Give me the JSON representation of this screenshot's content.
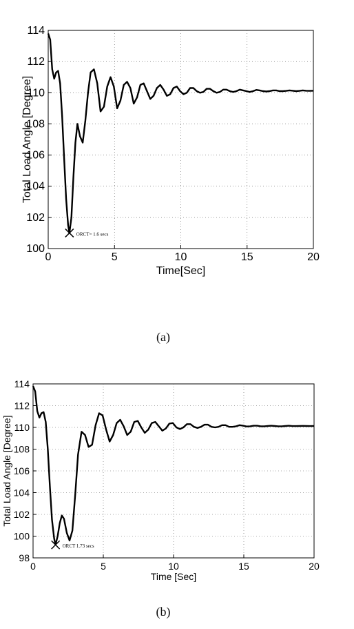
{
  "chart_data": [
    {
      "type": "line",
      "xlabel": "Time[Sec]",
      "ylabel": "Total Load Angle [Degree]",
      "xlim": [
        0,
        20
      ],
      "ylim": [
        100,
        114
      ],
      "xticks": [
        0,
        5,
        10,
        15,
        20
      ],
      "yticks": [
        100,
        102,
        104,
        106,
        108,
        110,
        112,
        114
      ],
      "grid": "dotted",
      "annotation": {
        "text": "ORCT= 1.6 secs",
        "x": 1.6,
        "y": 101.0
      },
      "series": [
        {
          "x": [
            0,
            0.15,
            0.3,
            0.45,
            0.6,
            0.75,
            0.9,
            1.05,
            1.2,
            1.35,
            1.5,
            1.6,
            1.75,
            1.9,
            2.05,
            2.2,
            2.4,
            2.6,
            2.8,
            3.0,
            3.2,
            3.45,
            3.7,
            3.95,
            4.2,
            4.45,
            4.7,
            4.95,
            5.2,
            5.45,
            5.7,
            5.95,
            6.2,
            6.45,
            6.7,
            6.95,
            7.2,
            7.45,
            7.7,
            7.95,
            8.2,
            8.45,
            8.7,
            8.95,
            9.2,
            9.45,
            9.7,
            9.95,
            10.2,
            10.45,
            10.7,
            10.95,
            11.2,
            11.45,
            11.7,
            11.95,
            12.2,
            12.45,
            12.7,
            12.95,
            13.2,
            13.45,
            13.7,
            13.95,
            14.2,
            14.45,
            14.7,
            14.95,
            15.2,
            15.45,
            15.7,
            15.95,
            16.2,
            16.45,
            16.7,
            16.95,
            17.2,
            17.45,
            17.7,
            17.95,
            18.2,
            18.45,
            18.7,
            18.95,
            19.2,
            19.45,
            19.7,
            20
          ],
          "y": [
            113.8,
            113.4,
            111.5,
            110.9,
            111.3,
            111.4,
            110.6,
            108.5,
            105.8,
            103.2,
            101.5,
            101.0,
            102.0,
            104.6,
            106.8,
            108.0,
            107.2,
            106.8,
            108.2,
            110.0,
            111.3,
            111.5,
            110.6,
            108.8,
            109.1,
            110.4,
            111.0,
            110.4,
            109.0,
            109.5,
            110.5,
            110.7,
            110.3,
            109.3,
            109.7,
            110.5,
            110.6,
            110.1,
            109.6,
            109.8,
            110.3,
            110.5,
            110.2,
            109.8,
            109.9,
            110.3,
            110.4,
            110.1,
            109.9,
            110.0,
            110.3,
            110.3,
            110.1,
            110.0,
            110.05,
            110.25,
            110.25,
            110.1,
            110.0,
            110.05,
            110.2,
            110.2,
            110.1,
            110.05,
            110.1,
            110.2,
            110.15,
            110.1,
            110.05,
            110.1,
            110.18,
            110.15,
            110.1,
            110.08,
            110.1,
            110.15,
            110.15,
            110.1,
            110.1,
            110.12,
            110.15,
            110.13,
            110.1,
            110.12,
            110.15,
            110.13,
            110.12,
            110.13
          ]
        }
      ]
    },
    {
      "type": "line",
      "xlabel": "Time [Sec]",
      "ylabel": "Total Load Angle [Degree]",
      "xlim": [
        0,
        20
      ],
      "ylim": [
        98,
        114
      ],
      "xticks": [
        0,
        5,
        10,
        15,
        20
      ],
      "yticks": [
        98,
        100,
        102,
        104,
        106,
        108,
        110,
        112,
        114
      ],
      "grid": "dotted",
      "annotation": {
        "text": "ORCT 1.73 secs",
        "x": 1.6,
        "y": 99.2
      },
      "series": [
        {
          "x": [
            0,
            0.15,
            0.3,
            0.45,
            0.6,
            0.75,
            0.9,
            1.05,
            1.2,
            1.35,
            1.5,
            1.6,
            1.75,
            1.9,
            2.05,
            2.2,
            2.4,
            2.6,
            2.8,
            3.0,
            3.2,
            3.45,
            3.7,
            3.95,
            4.2,
            4.45,
            4.7,
            4.95,
            5.2,
            5.45,
            5.7,
            5.95,
            6.2,
            6.45,
            6.7,
            6.95,
            7.2,
            7.45,
            7.7,
            7.95,
            8.2,
            8.45,
            8.7,
            8.95,
            9.2,
            9.45,
            9.7,
            9.95,
            10.2,
            10.45,
            10.7,
            10.95,
            11.2,
            11.45,
            11.7,
            11.95,
            12.2,
            12.45,
            12.7,
            12.95,
            13.2,
            13.45,
            13.7,
            13.95,
            14.2,
            14.45,
            14.7,
            14.95,
            15.2,
            15.45,
            15.7,
            15.95,
            16.2,
            16.45,
            16.7,
            16.95,
            17.2,
            17.45,
            17.7,
            17.95,
            18.2,
            18.45,
            18.7,
            18.95,
            19.2,
            19.45,
            19.7,
            20
          ],
          "y": [
            113.8,
            113.3,
            111.5,
            110.9,
            111.3,
            111.4,
            110.5,
            108.0,
            104.5,
            101.5,
            99.8,
            99.2,
            100.0,
            101.2,
            101.9,
            101.6,
            100.3,
            99.6,
            100.5,
            103.8,
            107.5,
            109.6,
            109.3,
            108.2,
            108.4,
            110.2,
            111.3,
            111.1,
            109.8,
            108.7,
            109.3,
            110.4,
            110.7,
            110.1,
            109.3,
            109.6,
            110.5,
            110.6,
            110.0,
            109.5,
            109.8,
            110.4,
            110.5,
            110.1,
            109.7,
            109.9,
            110.35,
            110.4,
            110.0,
            109.85,
            110.0,
            110.3,
            110.3,
            110.05,
            109.95,
            110.05,
            110.25,
            110.25,
            110.05,
            110.0,
            110.05,
            110.2,
            110.2,
            110.05,
            110.05,
            110.1,
            110.2,
            110.15,
            110.08,
            110.1,
            110.15,
            110.15,
            110.1,
            110.1,
            110.13,
            110.15,
            110.13,
            110.1,
            110.1,
            110.13,
            110.15,
            110.12,
            110.12,
            110.13,
            110.14,
            110.13,
            110.12,
            110.13
          ]
        }
      ]
    }
  ],
  "captions": [
    "(a)",
    "(b)"
  ]
}
